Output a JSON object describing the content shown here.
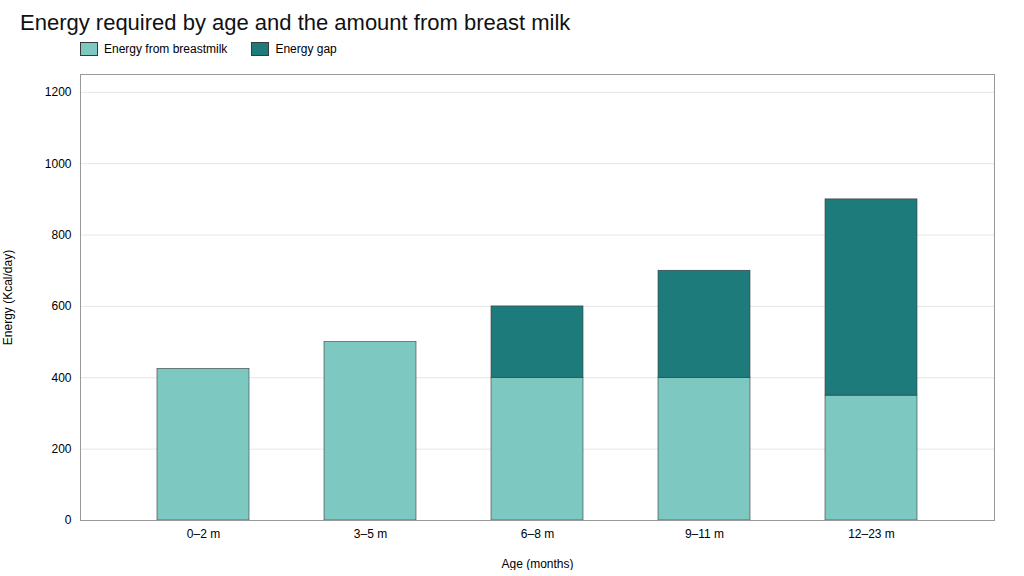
{
  "chart_data": {
    "type": "bar",
    "stacked": true,
    "title": "Energy required by age and the amount from breast milk",
    "xlabel": "Age (months)",
    "ylabel": "Energy (Kcal/day)",
    "categories": [
      "0–2 m",
      "3–5 m",
      "6–8 m",
      "9–11 m",
      "12–23 m"
    ],
    "series": [
      {
        "name": "Energy from breastmilk",
        "color": "#7ec8c2",
        "values": [
          425,
          500,
          400,
          400,
          350
        ]
      },
      {
        "name": "Energy gap",
        "color": "#1e7b7b",
        "values": [
          0,
          0,
          200,
          300,
          550
        ]
      }
    ],
    "ylim": [
      0,
      1250
    ],
    "yticks": [
      0,
      200,
      400,
      600,
      800,
      1000,
      1200
    ],
    "grid": true,
    "legend": "upper left"
  }
}
